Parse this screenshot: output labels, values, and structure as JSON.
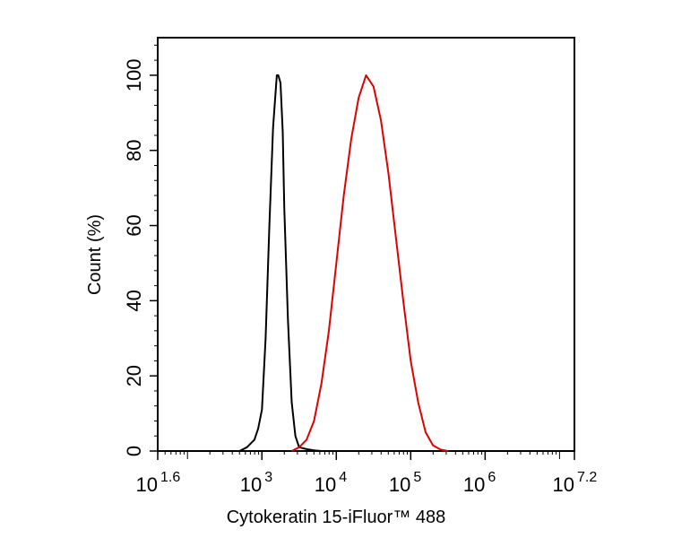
{
  "chart_data": {
    "type": "line",
    "title": "",
    "xlabel": "Cytokeratin 15-iFluor™ 488",
    "ylabel": "Count  (%)",
    "x_scale": "log",
    "xlim": [
      1.6,
      7.2
    ],
    "ylim": [
      0,
      110
    ],
    "x_ticks": [
      {
        "base": "10",
        "exp": "1.6",
        "value": 1.6
      },
      {
        "base": "10",
        "exp": "3",
        "value": 3
      },
      {
        "base": "10",
        "exp": "4",
        "value": 4
      },
      {
        "base": "10",
        "exp": "5",
        "value": 5
      },
      {
        "base": "10",
        "exp": "6",
        "value": 6
      },
      {
        "base": "10",
        "exp": "7.2",
        "value": 7.2
      }
    ],
    "y_ticks": [
      {
        "label": "0",
        "value": 0
      },
      {
        "label": "20",
        "value": 20
      },
      {
        "label": "40",
        "value": 40
      },
      {
        "label": "60",
        "value": 60
      },
      {
        "label": "80",
        "value": 80
      },
      {
        "label": "100",
        "value": 100
      }
    ],
    "grid": false,
    "legend": "none",
    "series": [
      {
        "color": "#000000",
        "x": [
          2.7,
          2.8,
          2.9,
          2.95,
          3.0,
          3.05,
          3.1,
          3.15,
          3.2,
          3.22,
          3.25,
          3.28,
          3.3,
          3.35,
          3.4,
          3.45,
          3.5,
          3.6,
          3.7,
          3.8
        ],
        "y": [
          0,
          1,
          3,
          6,
          11,
          30,
          60,
          86,
          100,
          100,
          98,
          85,
          65,
          35,
          13,
          4,
          1,
          0.5,
          0.2,
          0
        ]
      },
      {
        "color": "#e00000",
        "x": [
          3.4,
          3.5,
          3.6,
          3.7,
          3.8,
          3.9,
          4.0,
          4.1,
          4.2,
          4.3,
          4.4,
          4.5,
          4.6,
          4.7,
          4.8,
          4.9,
          5.0,
          5.1,
          5.2,
          5.3,
          5.4,
          5.5
        ],
        "y": [
          0,
          1,
          3,
          8,
          18,
          32,
          50,
          68,
          83,
          94,
          100,
          97,
          88,
          74,
          57,
          40,
          24,
          13,
          5,
          1.5,
          0.4,
          0
        ]
      }
    ]
  }
}
